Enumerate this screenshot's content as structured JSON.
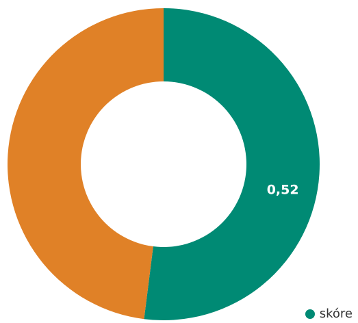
{
  "chart_data": {
    "type": "pie",
    "subtype": "donut",
    "title": "",
    "slices": [
      {
        "name": "skóre",
        "value": 0.52,
        "label": "0,52",
        "color": "#008a74"
      },
      {
        "name": "",
        "value": 0.48,
        "label": "",
        "color": "#e08127"
      }
    ],
    "legend": {
      "placement": "bottom-right",
      "entries": [
        "skóre"
      ]
    }
  }
}
